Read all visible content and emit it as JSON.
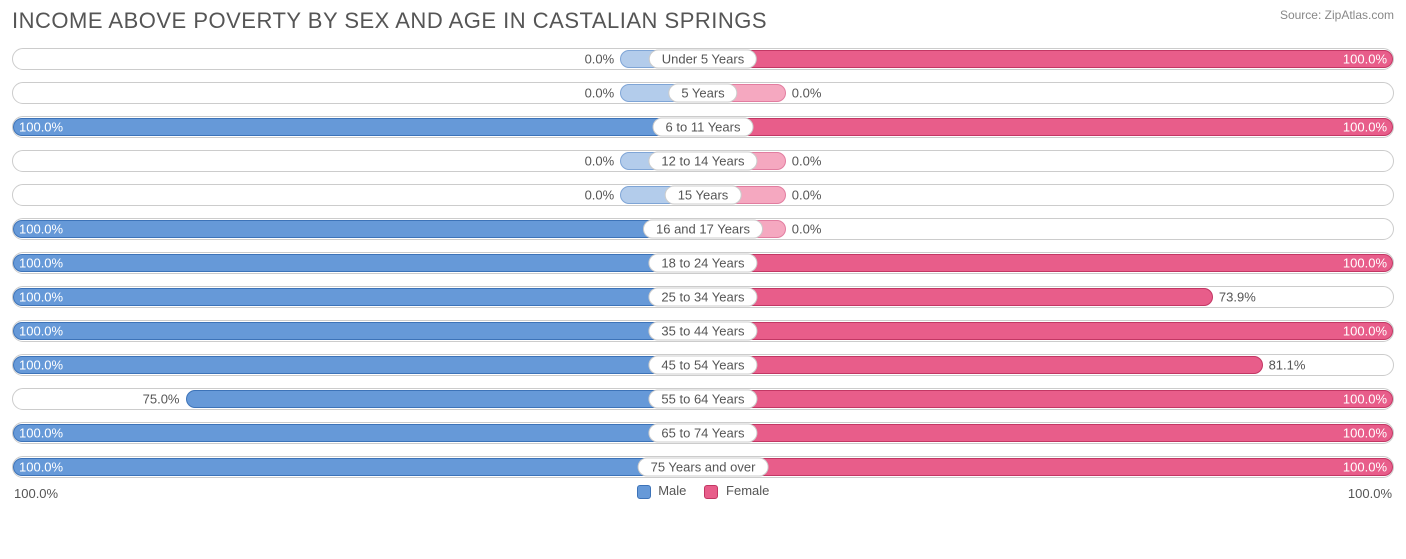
{
  "title": "INCOME ABOVE POVERTY BY SEX AND AGE IN CASTALIAN SPRINGS",
  "source": "Source: ZipAtlas.com",
  "colors": {
    "male_fill": "#6699d8",
    "male_stroke": "#3d73b8",
    "male_stub_fill": "#b3cceb",
    "male_stub_stroke": "#7fa5d6",
    "female_fill": "#e85d8a",
    "female_stroke": "#c23764",
    "female_stub_fill": "#f5a8c0",
    "female_stub_stroke": "#e27da0",
    "row_border": "#cccccc",
    "text": "#555555",
    "label_inside": "#ffffff",
    "background": "#ffffff"
  },
  "stub_width_pct": 12,
  "label_fontsize": 13,
  "title_fontsize": 22,
  "rows": [
    {
      "age": "Under 5 Years",
      "male": 0.0,
      "female": 100.0
    },
    {
      "age": "5 Years",
      "male": 0.0,
      "female": 0.0
    },
    {
      "age": "6 to 11 Years",
      "male": 100.0,
      "female": 100.0
    },
    {
      "age": "12 to 14 Years",
      "male": 0.0,
      "female": 0.0
    },
    {
      "age": "15 Years",
      "male": 0.0,
      "female": 0.0
    },
    {
      "age": "16 and 17 Years",
      "male": 100.0,
      "female": 0.0
    },
    {
      "age": "18 to 24 Years",
      "male": 100.0,
      "female": 100.0
    },
    {
      "age": "25 to 34 Years",
      "male": 100.0,
      "female": 73.9
    },
    {
      "age": "35 to 44 Years",
      "male": 100.0,
      "female": 100.0
    },
    {
      "age": "45 to 54 Years",
      "male": 100.0,
      "female": 81.1
    },
    {
      "age": "55 to 64 Years",
      "male": 75.0,
      "female": 100.0
    },
    {
      "age": "65 to 74 Years",
      "male": 100.0,
      "female": 100.0
    },
    {
      "age": "75 Years and over",
      "male": 100.0,
      "female": 100.0
    }
  ],
  "axis": {
    "left": "100.0%",
    "right": "100.0%"
  },
  "legend": {
    "male": "Male",
    "female": "Female"
  }
}
